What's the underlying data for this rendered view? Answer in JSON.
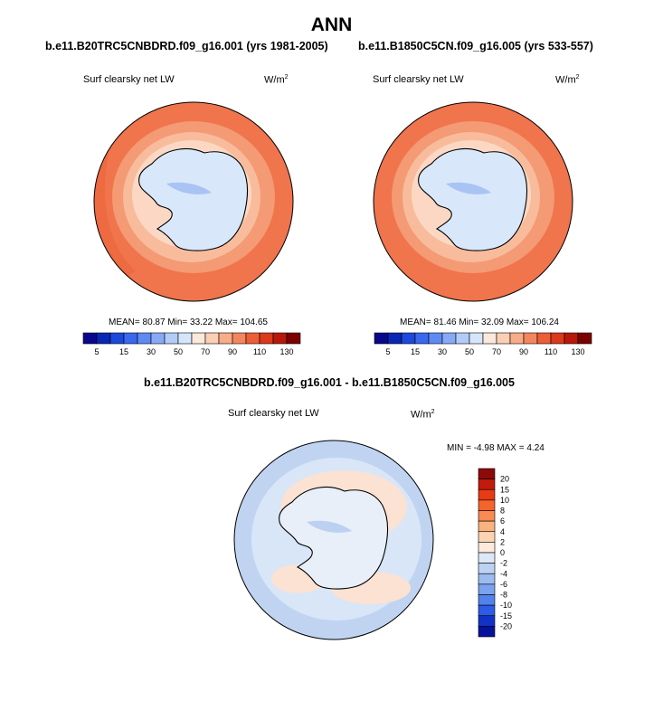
{
  "main_title": "ANN",
  "panels": [
    {
      "case": "b.e11.B20TRC5CNBDRD.f09_g16.001 (yrs 1981-2005)",
      "variable": "Surf clearsky net LW",
      "units_base": "W/m",
      "units_exp": "2",
      "stats": "MEAN=  80.87  Min=  33.22  Max= 104.65"
    },
    {
      "case": "b.e11.B1850C5CN.f09_g16.005 (yrs 533-557)",
      "variable": "Surf clearsky net LW",
      "units_base": "W/m",
      "units_exp": "2",
      "stats": "MEAN=  81.46  Min=  32.09  Max= 106.24"
    }
  ],
  "diff_panel": {
    "case": "b.e11.B20TRC5CNBDRD.f09_g16.001 - b.e11.B1850C5CN.f09_g16.005",
    "variable": "Surf clearsky net LW",
    "units_base": "W/m",
    "units_exp": "2",
    "stats": "MIN =  -4.98 MAX =   4.24"
  },
  "colorbar_top": {
    "colors": [
      "#08088c",
      "#0a26b4",
      "#1c48dc",
      "#3a68ee",
      "#5e8af4",
      "#88aaf6",
      "#b2ccf8",
      "#d6e6fa",
      "#fde8dc",
      "#fbcfb4",
      "#f8ac88",
      "#f4865e",
      "#ee5e36",
      "#dc381a",
      "#b8180a",
      "#7c0202"
    ],
    "tick_labels": [
      "5",
      "15",
      "30",
      "50",
      "70",
      "90",
      "110",
      "130"
    ]
  },
  "colorbar_diff": {
    "colors_top_to_bottom": [
      "#8c0a0a",
      "#c21a0c",
      "#e83a14",
      "#f4642c",
      "#f88a52",
      "#fab27e",
      "#fcd2b2",
      "#fdeadc",
      "#dde8f6",
      "#bcd2f2",
      "#9cbcf0",
      "#7aa2ee",
      "#5282ec",
      "#2c5ce6",
      "#1232c6",
      "#06129a"
    ],
    "tick_labels": [
      "20",
      "15",
      "10",
      "8",
      "6",
      "4",
      "2",
      "0",
      "-2",
      "-4",
      "-6",
      "-8",
      "-10",
      "-15",
      "-20"
    ]
  }
}
